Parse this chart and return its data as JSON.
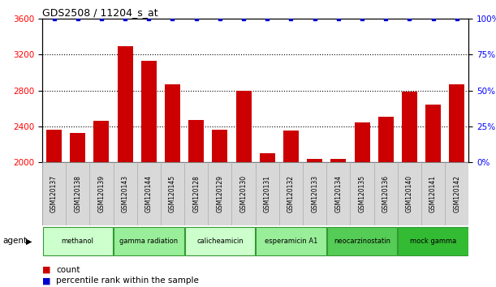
{
  "title": "GDS2508 / 11204_s_at",
  "categories": [
    "GSM120137",
    "GSM120138",
    "GSM120139",
    "GSM120143",
    "GSM120144",
    "GSM120145",
    "GSM120128",
    "GSM120129",
    "GSM120130",
    "GSM120131",
    "GSM120132",
    "GSM120133",
    "GSM120134",
    "GSM120135",
    "GSM120136",
    "GSM120140",
    "GSM120141",
    "GSM120142"
  ],
  "counts": [
    2360,
    2330,
    2460,
    3290,
    3130,
    2870,
    2470,
    2360,
    2800,
    2100,
    2350,
    2040,
    2040,
    2440,
    2510,
    2790,
    2640,
    2870
  ],
  "percentiles": [
    100,
    100,
    100,
    100,
    100,
    100,
    100,
    100,
    100,
    100,
    100,
    100,
    100,
    100,
    100,
    100,
    100,
    100
  ],
  "groups": [
    {
      "label": "methanol",
      "indices": [
        0,
        1,
        2
      ],
      "color": "#ccffcc"
    },
    {
      "label": "gamma radiation",
      "indices": [
        3,
        4,
        5
      ],
      "color": "#99ee99"
    },
    {
      "label": "calicheamicin",
      "indices": [
        6,
        7,
        8
      ],
      "color": "#ccffcc"
    },
    {
      "label": "esperamicin A1",
      "indices": [
        9,
        10,
        11
      ],
      "color": "#99ee99"
    },
    {
      "label": "neocarzinostatin",
      "indices": [
        12,
        13,
        14
      ],
      "color": "#55cc55"
    },
    {
      "label": "mock gamma",
      "indices": [
        15,
        16,
        17
      ],
      "color": "#33bb33"
    }
  ],
  "ylim_left": [
    2000,
    3600
  ],
  "ylim_right": [
    0,
    100
  ],
  "yticks_left": [
    2000,
    2400,
    2800,
    3200,
    3600
  ],
  "yticks_right": [
    0,
    25,
    50,
    75,
    100
  ],
  "bar_color": "#cc0000",
  "percentile_color": "#0000cc",
  "bar_bottom": 2000,
  "agent_label": "agent",
  "legend_count_color": "#cc0000",
  "legend_percentile_color": "#0000cc",
  "hgrid_lines": [
    2400,
    2800,
    3200
  ],
  "xtick_bg": "#d8d8d8",
  "xtick_edge": "#aaaaaa"
}
